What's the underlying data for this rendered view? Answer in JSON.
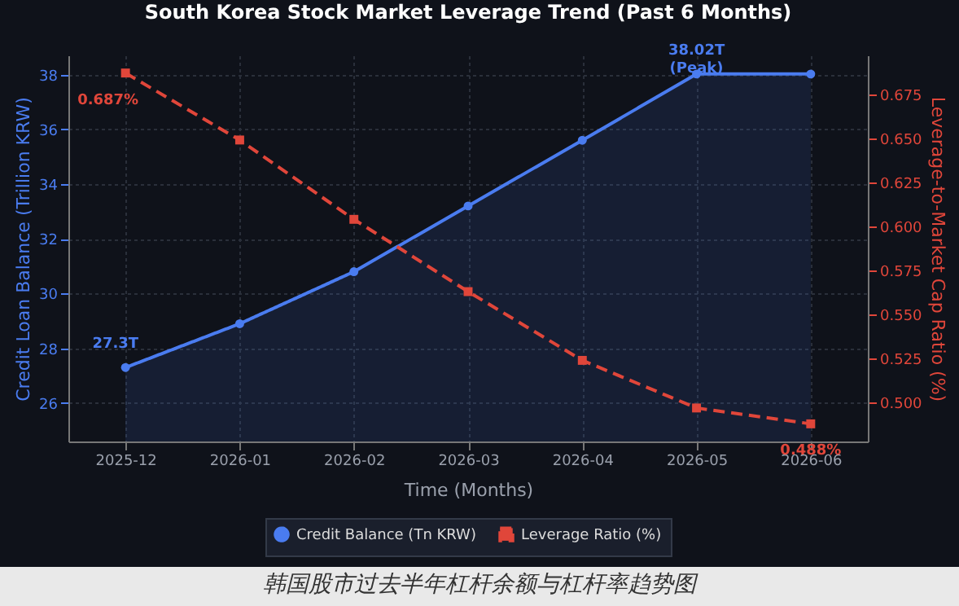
{
  "chart_data": {
    "type": "line",
    "title": "South Korea Stock Market Leverage Trend (Past 6 Months)",
    "categories": [
      "2025-12",
      "2026-01",
      "2026-02",
      "2026-03",
      "2026-04",
      "2026-05",
      "2026-06"
    ],
    "xlabel": "Time (Months)",
    "ylabel": "Credit Loan Balance (Trillion KRW)",
    "y2label": "Leverage-to-Market Cap Ratio (%)",
    "series": [
      {
        "name": "Credit Balance (Tn KRW)",
        "type": "area",
        "color": "#4a7cf0",
        "marker": "circle",
        "line_style": "solid",
        "values": [
          27.3,
          28.9,
          30.8,
          33.2,
          35.6,
          38.02,
          38.02
        ],
        "value_labels": [
          "27.3T",
          null,
          null,
          null,
          null,
          "38.02T\n(Peak)",
          null
        ]
      },
      {
        "name": "Leverage Ratio (%)",
        "axis": "y2",
        "color": "#e0463a",
        "marker": "square",
        "line_style": "dashed",
        "values": [
          0.687,
          0.649,
          0.604,
          0.563,
          0.524,
          0.497,
          0.488
        ],
        "value_labels": [
          "0.687%",
          null,
          null,
          null,
          null,
          null,
          "0.488%"
        ]
      }
    ],
    "ylim": [
      24.6,
      38.7
    ],
    "yticks": [
      26,
      28,
      30,
      32,
      34,
      36,
      38
    ],
    "y2lim": [
      0.478,
      0.697
    ],
    "y2ticks": [
      {
        "value": 0.5,
        "label": "0.500"
      },
      0.525,
      {
        "value": 0.55,
        "label": "0.550"
      },
      0.575,
      {
        "value": 0.6,
        "label": "0.600"
      },
      0.625,
      {
        "value": 0.65,
        "label": "0.650"
      },
      0.675
    ],
    "grid": true,
    "legend": "bottom",
    "annotations": [
      "韩国股市过去半年杠杆余额与杠杆率趋势图"
    ]
  }
}
